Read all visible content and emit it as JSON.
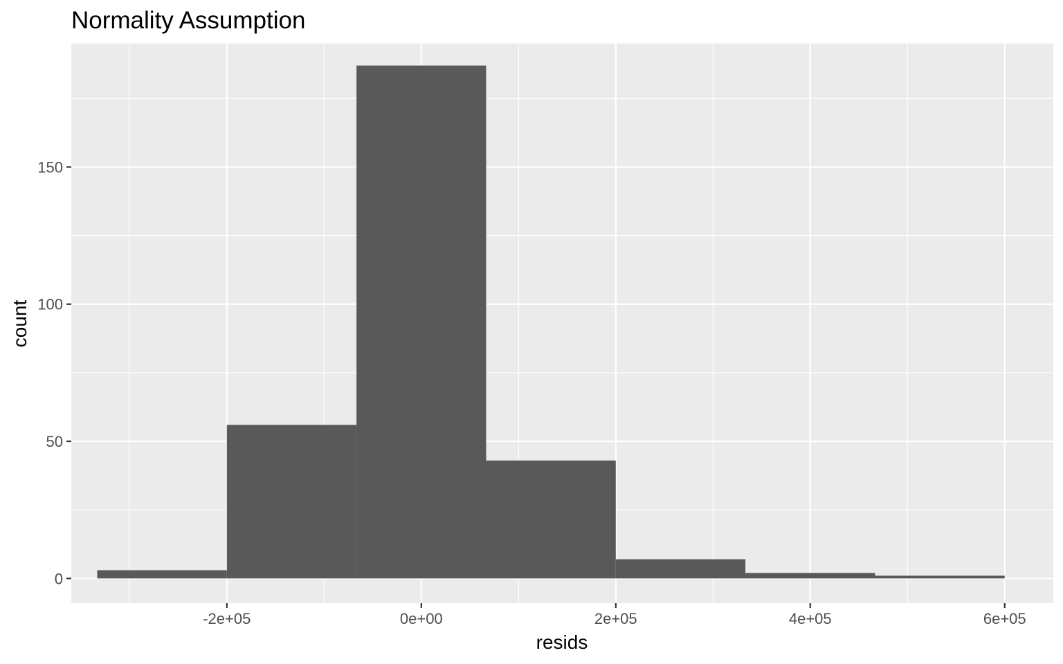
{
  "chart_data": {
    "type": "histogram",
    "title": "Normality Assumption",
    "xlabel": "resids",
    "ylabel": "count",
    "xlim": [
      -360000,
      650000
    ],
    "ylim": [
      -9,
      195
    ],
    "x_ticks": [
      {
        "value": -200000,
        "label": "-2e+05"
      },
      {
        "value": 0,
        "label": "0e+00"
      },
      {
        "value": 200000,
        "label": "2e+05"
      },
      {
        "value": 400000,
        "label": "4e+05"
      },
      {
        "value": 600000,
        "label": "6e+05"
      }
    ],
    "x_minor_ticks": [
      -300000,
      -100000,
      100000,
      300000,
      500000
    ],
    "y_ticks": [
      {
        "value": 0,
        "label": "0"
      },
      {
        "value": 50,
        "label": "50"
      },
      {
        "value": 100,
        "label": "100"
      },
      {
        "value": 150,
        "label": "150"
      }
    ],
    "y_minor_ticks": [
      25,
      75,
      125,
      175
    ],
    "bins": [
      {
        "x0": -333333,
        "x1": -200000,
        "count": 3
      },
      {
        "x0": -200000,
        "x1": -66667,
        "count": 56
      },
      {
        "x0": -66667,
        "x1": 66667,
        "count": 187
      },
      {
        "x0": 66667,
        "x1": 200000,
        "count": 43
      },
      {
        "x0": 200000,
        "x1": 333333,
        "count": 7
      },
      {
        "x0": 333333,
        "x1": 466667,
        "count": 2
      },
      {
        "x0": 466667,
        "x1": 600000,
        "count": 1
      }
    ],
    "grid": true,
    "colors": {
      "panel_background": "#EBEBEB",
      "grid": "#FFFFFF",
      "bar_fill": "#595959",
      "tick_label": "#4D4D4D",
      "tick_mark": "#333333"
    }
  }
}
